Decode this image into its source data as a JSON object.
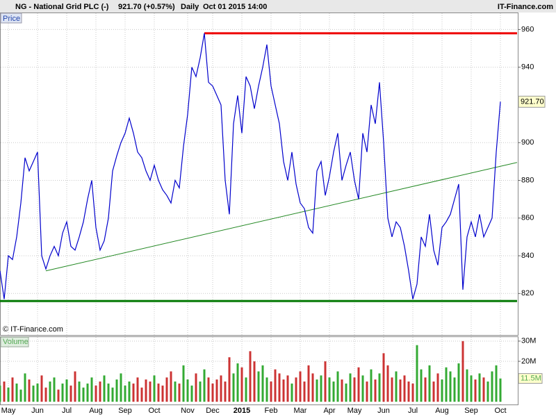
{
  "header": {
    "symbol": "NG - National Grid PLC (-)",
    "quote": "921.70 (+0.57%)",
    "period": "Daily",
    "datetime": "Oct 01 2015 14:00",
    "site": "IT-Finance.com"
  },
  "chart_data": [
    {
      "type": "line",
      "panel": "Price",
      "copyright": "© IT-Finance.com",
      "color": "#0000cc",
      "grid": true,
      "values": [
        832,
        817,
        840,
        838,
        850,
        868,
        892,
        885,
        890,
        895,
        840,
        833,
        840,
        845,
        840,
        852,
        858,
        845,
        843,
        850,
        858,
        870,
        880,
        855,
        843,
        848,
        860,
        885,
        893,
        900,
        905,
        913,
        905,
        895,
        892,
        885,
        880,
        888,
        880,
        875,
        872,
        868,
        880,
        876,
        898,
        915,
        940,
        935,
        945,
        958,
        932,
        930,
        925,
        920,
        880,
        862,
        910,
        925,
        905,
        935,
        930,
        918,
        930,
        940,
        952,
        930,
        920,
        910,
        890,
        880,
        895,
        878,
        868,
        865,
        855,
        852,
        885,
        890,
        872,
        882,
        895,
        905,
        880,
        888,
        895,
        880,
        870,
        905,
        895,
        920,
        910,
        932,
        900,
        860,
        850,
        858,
        855,
        845,
        832,
        817,
        825,
        850,
        845,
        862,
        843,
        835,
        855,
        858,
        862,
        870,
        878,
        822,
        850,
        858,
        850,
        862,
        850,
        855,
        860,
        895,
        921.7
      ],
      "xlim": [
        0,
        120
      ],
      "xticks": [
        {
          "value": 2,
          "label": "May"
        },
        {
          "value": 9,
          "label": "Jun"
        },
        {
          "value": 16,
          "label": "Jul"
        },
        {
          "value": 23,
          "label": "Aug"
        },
        {
          "value": 30,
          "label": "Sep"
        },
        {
          "value": 37,
          "label": "Oct"
        },
        {
          "value": 45,
          "label": "Nov"
        },
        {
          "value": 51,
          "label": "Dec"
        },
        {
          "value": 58,
          "label": "2015"
        },
        {
          "value": 65,
          "label": "Feb"
        },
        {
          "value": 72,
          "label": "Mar"
        },
        {
          "value": 79,
          "label": "Apr"
        },
        {
          "value": 85,
          "label": "May"
        },
        {
          "value": 92,
          "label": "Jun"
        },
        {
          "value": 99,
          "label": "Jul"
        },
        {
          "value": 106,
          "label": "Aug"
        },
        {
          "value": 113,
          "label": "Sep"
        },
        {
          "value": 120,
          "label": "Oct"
        }
      ],
      "ylim": [
        798,
        969
      ],
      "yticks": [
        820,
        840,
        860,
        880,
        900,
        940,
        960
      ],
      "last": {
        "value": 921.7,
        "label": "921.70"
      },
      "hlines": [
        {
          "value": 958,
          "from": 49,
          "to": 124,
          "color": "#ee0000"
        },
        {
          "value": 816,
          "from": 0,
          "to": 124,
          "color": "#007700"
        }
      ],
      "trendline": {
        "from": [
          11,
          832
        ],
        "to": [
          124,
          889.5
        ],
        "color": "#228822"
      }
    },
    {
      "type": "bar",
      "panel": "Volume",
      "up_color": "#33aa33",
      "down_color": "#cc3333",
      "values": [
        8,
        10,
        7,
        12,
        9,
        6,
        14,
        11,
        8,
        9,
        13,
        7,
        10,
        12,
        6,
        9,
        11,
        8,
        15,
        10,
        7,
        9,
        12,
        8,
        10,
        13,
        9,
        7,
        11,
        14,
        8,
        10,
        9,
        12,
        7,
        11,
        10,
        13,
        9,
        8,
        12,
        15,
        10,
        9,
        18,
        11,
        8,
        14,
        10,
        16,
        12,
        9,
        11,
        13,
        10,
        22,
        14,
        19,
        17,
        12,
        25,
        20,
        15,
        18,
        12,
        10,
        16,
        14,
        11,
        13,
        9,
        12,
        15,
        10,
        18,
        14,
        11,
        13,
        20,
        12,
        10,
        15,
        11,
        9,
        14,
        12,
        17,
        13,
        10,
        16,
        11,
        14,
        24,
        18,
        12,
        15,
        11,
        13,
        10,
        9,
        28,
        16,
        12,
        18,
        10,
        14,
        11,
        17,
        15,
        12,
        19,
        30,
        16,
        13,
        11,
        14,
        12,
        10,
        15,
        18,
        11.5
      ],
      "ylim": [
        0,
        32
      ],
      "yticks": [
        {
          "value": 20,
          "label": "20M"
        },
        {
          "value": 30,
          "label": "30M"
        }
      ],
      "last": {
        "value": 11.5,
        "label": "11.5M"
      }
    }
  ]
}
